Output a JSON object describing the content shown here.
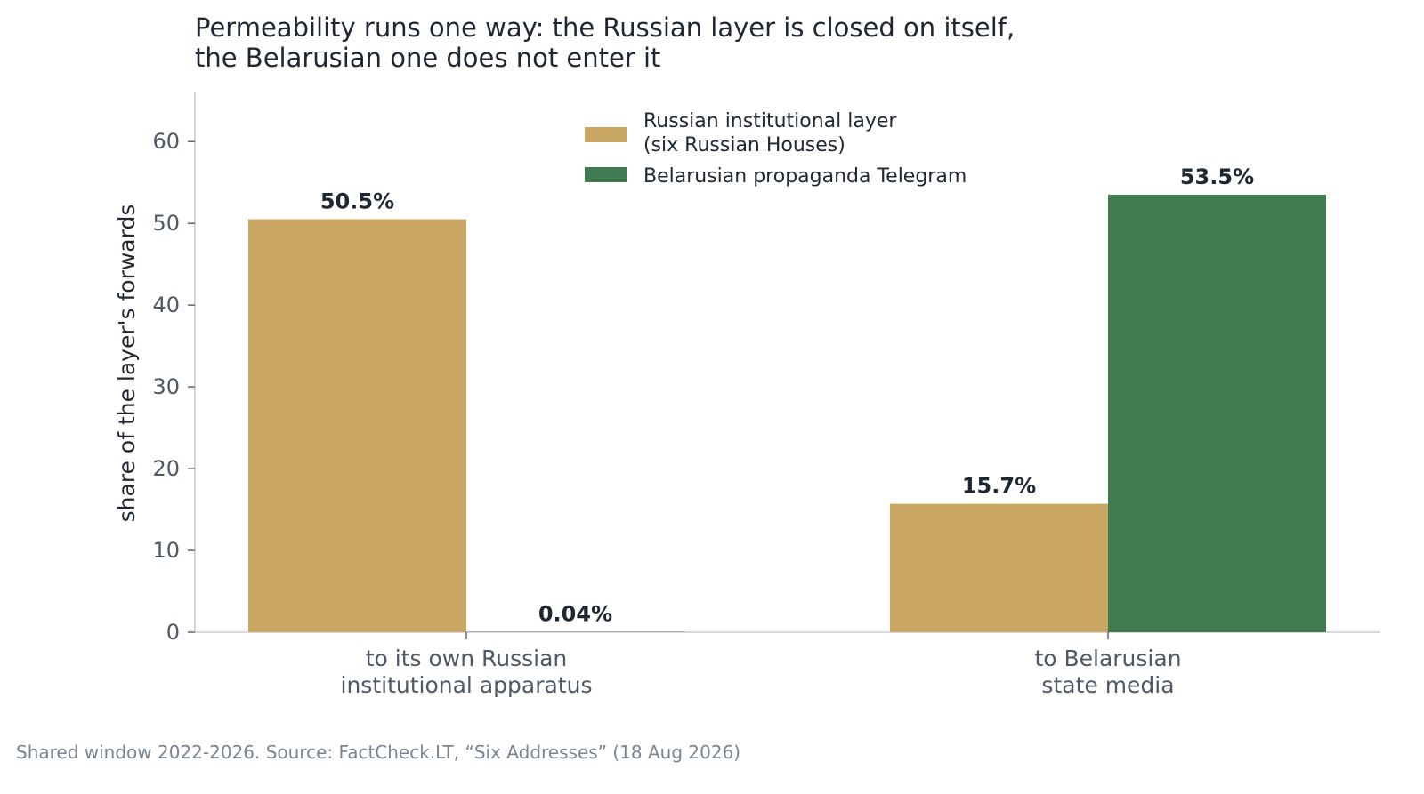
{
  "chart_data": {
    "type": "bar",
    "title_lines": [
      "Permeability runs one way: the Russian layer is closed on itself,",
      "the Belarusian one does not enter it"
    ],
    "ylabel": "share of the layer's forwards",
    "xlabel": "",
    "ylim": [
      0,
      66
    ],
    "yticks": [
      0,
      10,
      20,
      30,
      40,
      50,
      60
    ],
    "categories": [
      [
        "to its own Russian",
        "institutional apparatus"
      ],
      [
        "to Belarusian",
        "state media"
      ]
    ],
    "series": [
      {
        "name_lines": [
          "Russian institutional layer",
          "(six Russian Houses)"
        ],
        "color": "#c9a661",
        "values": [
          50.5,
          15.7
        ],
        "value_labels": [
          "50.5%",
          "15.7%"
        ]
      },
      {
        "name_lines": [
          "Belarusian propaganda Telegram"
        ],
        "color": "#407a51",
        "values": [
          0.04,
          53.5
        ],
        "value_labels": [
          "0.04%",
          "53.5%"
        ]
      }
    ],
    "legend_position": "top-center",
    "grid": false,
    "source_note": "Shared window 2022-2026. Source: FactCheck.LT, “Six Addresses” (18 Aug 2026)"
  }
}
